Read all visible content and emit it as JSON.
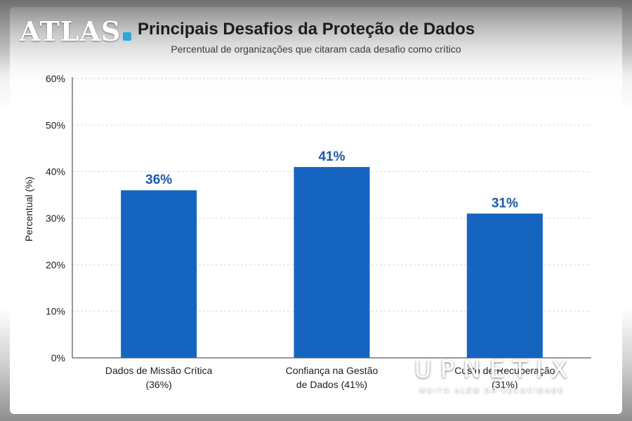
{
  "brand": {
    "logo_text": "ATLAS",
    "accent": "#2aa8e0"
  },
  "chart_data": {
    "type": "bar",
    "title": "Principais Desafios da Proteção de Dados",
    "subtitle": "Percentual de organizações que citaram cada desafio como crítico",
    "xlabel": "",
    "ylabel": "Percentual (%)",
    "ylim": [
      0,
      60
    ],
    "yticks": [
      "0%",
      "10%",
      "20%",
      "30%",
      "40%",
      "50%",
      "60%"
    ],
    "grid": true,
    "bar_color": "#1565c0",
    "label_color": "#1a5aa6",
    "categories": [
      {
        "line1": "Dados de Missão Crítica",
        "line2": "(36%)"
      },
      {
        "line1": "Confiança na Gestão",
        "line2": "de Dados (41%)"
      },
      {
        "line1": "Custo de Recuperação",
        "line2": "(31%)"
      }
    ],
    "values": [
      36,
      41,
      31
    ],
    "value_labels": [
      "36%",
      "41%",
      "31%"
    ]
  },
  "watermark": {
    "name": "UPNETIX",
    "tagline": "MUITO ALÉM DA VELOCIDADE"
  }
}
